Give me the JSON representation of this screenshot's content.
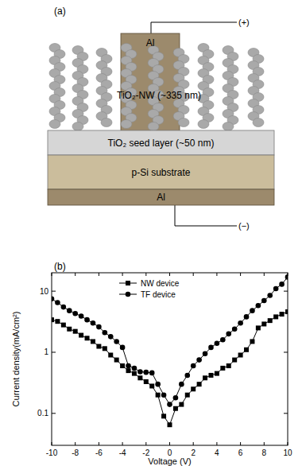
{
  "diagram": {
    "panel_label": "(a)",
    "top_electrode": "Al",
    "nanowire_label": "TiO₂-NW (~335 nm)",
    "seed_layer": "TiO₂ seed layer (~50 nm)",
    "substrate": "p-Si substrate",
    "bottom_electrode": "Al",
    "positive_terminal": "(+)",
    "negative_terminal": "(−)"
  },
  "chart_data": {
    "type": "line",
    "title": "(b)",
    "x_label": "Voltage (V)",
    "y_label": "Current density(mA/cm²)",
    "x": [
      -10,
      -9.5,
      -9,
      -8.5,
      -8,
      -7.5,
      -7,
      -6.5,
      -6,
      -5.5,
      -5,
      -4.5,
      -4,
      -3.5,
      -3,
      -2.5,
      -2,
      -1.5,
      -1,
      -0.5,
      0,
      0.5,
      1,
      1.5,
      2,
      2.5,
      3,
      3.5,
      4,
      4.5,
      5,
      5.5,
      6,
      6.5,
      7,
      7.5,
      8,
      8.5,
      9,
      9.5,
      10
    ],
    "series": [
      {
        "name": "NW device",
        "color": "#000000",
        "marker": "square",
        "line_style": "solid",
        "values": [
          3.4,
          3.2,
          2.8,
          2.4,
          2.2,
          1.9,
          1.7,
          1.5,
          1.25,
          1.15,
          0.9,
          0.75,
          0.6,
          0.5,
          0.45,
          0.38,
          0.33,
          0.28,
          0.2,
          0.09,
          0.065,
          0.12,
          0.14,
          0.2,
          0.25,
          0.3,
          0.38,
          0.42,
          0.45,
          0.55,
          0.6,
          0.75,
          0.9,
          1.1,
          1.5,
          2.5,
          2.9,
          3.3,
          3.8,
          4.2,
          4.6
        ]
      },
      {
        "name": "TF device",
        "color": "#000000",
        "marker": "circle",
        "line_style": "solid",
        "values": [
          7.5,
          6.5,
          5.5,
          4.8,
          4.3,
          3.9,
          3.4,
          3.0,
          2.6,
          2.1,
          1.8,
          1.5,
          1.2,
          0.6,
          0.55,
          0.48,
          0.47,
          0.46,
          0.3,
          0.2,
          0.14,
          0.18,
          0.3,
          0.42,
          0.6,
          0.75,
          0.95,
          1.2,
          1.4,
          1.6,
          2.0,
          2.4,
          3.0,
          3.8,
          4.8,
          5.8,
          7.0,
          8.5,
          11,
          13,
          17
        ]
      }
    ],
    "xlim": [
      -10,
      10
    ],
    "xticks": [
      -10,
      -8,
      -6,
      -4,
      -2,
      0,
      2,
      4,
      6,
      8,
      10
    ],
    "ylim": [
      0.03,
      20
    ],
    "yticks": [
      0.1,
      1,
      10
    ],
    "log": "y",
    "grid": false,
    "legend": "top"
  }
}
